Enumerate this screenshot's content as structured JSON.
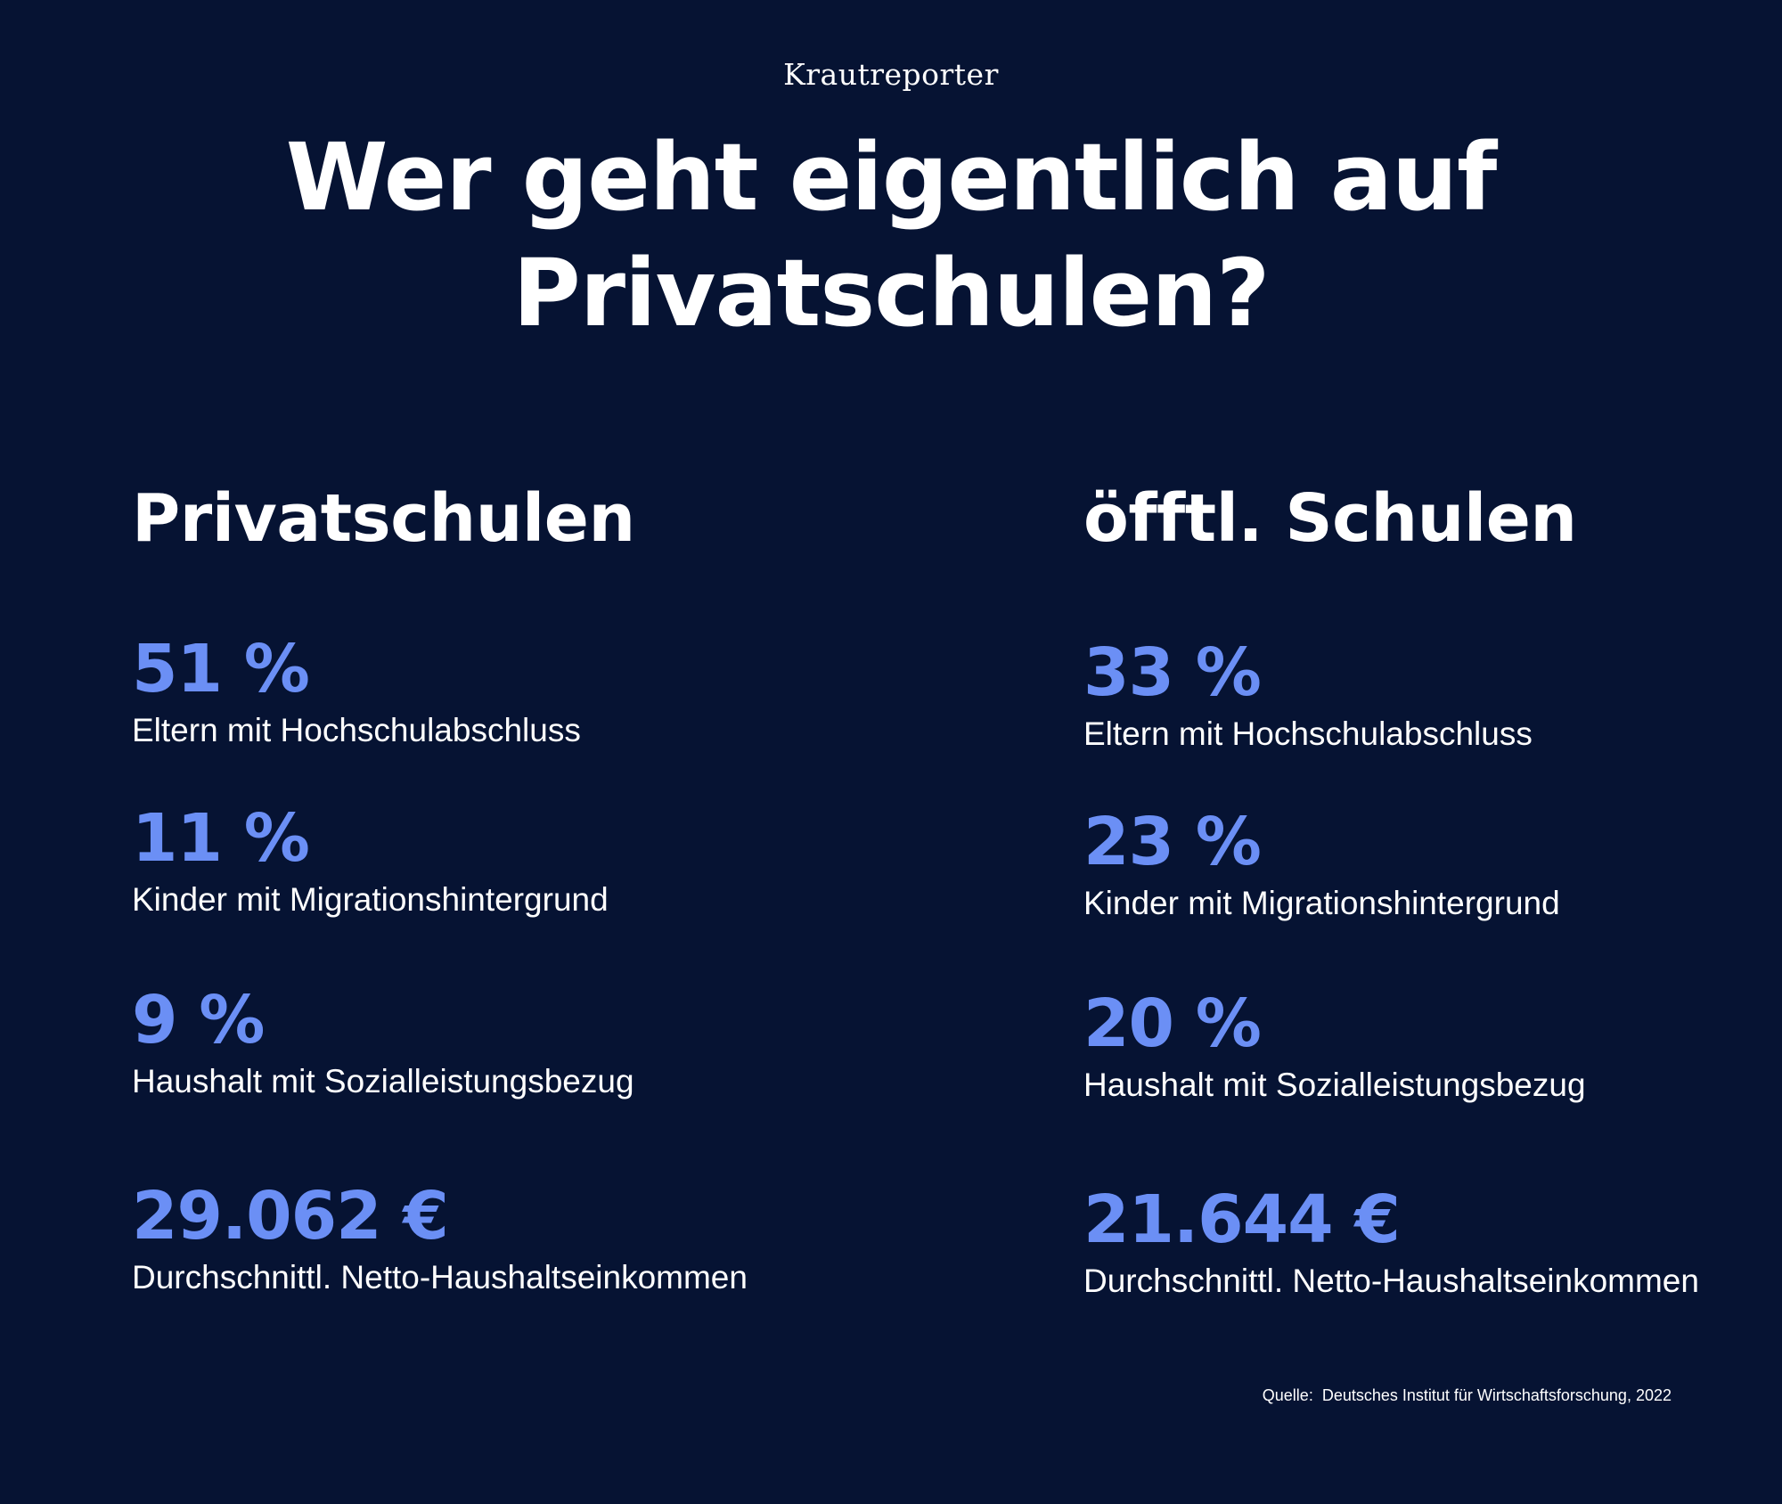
{
  "brand": "Krautreporter",
  "headline": {
    "line1": "Wer geht eigentlich auf",
    "line2": "Privatschulen?"
  },
  "columns": [
    {
      "title": "Privatschulen",
      "stats": [
        {
          "value": "51 %",
          "label": "Eltern mit Hochschulabschluss"
        },
        {
          "value": "11 %",
          "label": "Kinder mit Migrationshintergrund"
        },
        {
          "value": "9 %",
          "label": "Haushalt mit Sozialleistungsbezug"
        },
        {
          "value": "29.062 €",
          "label": "Durchschnittl. Netto-Haushaltseinkommen"
        }
      ]
    },
    {
      "title": "öfftl. Schulen",
      "stats": [
        {
          "value": "33 %",
          "label": "Eltern mit Hochschulabschluss"
        },
        {
          "value": "23 %",
          "label": "Kinder mit Migrationshintergrund"
        },
        {
          "value": "20 %",
          "label": "Haushalt mit Sozialleistungsbezug"
        },
        {
          "value": "21.644 €",
          "label": "Durchschnittl. Netto-Haushaltseinkommen"
        }
      ]
    }
  ],
  "source": "Quelle:  Deutsches Institut für Wirtschaftsforschung, 2022",
  "colors": {
    "background": "#061333",
    "accent": "#6b8ff5",
    "text": "#ffffff"
  }
}
